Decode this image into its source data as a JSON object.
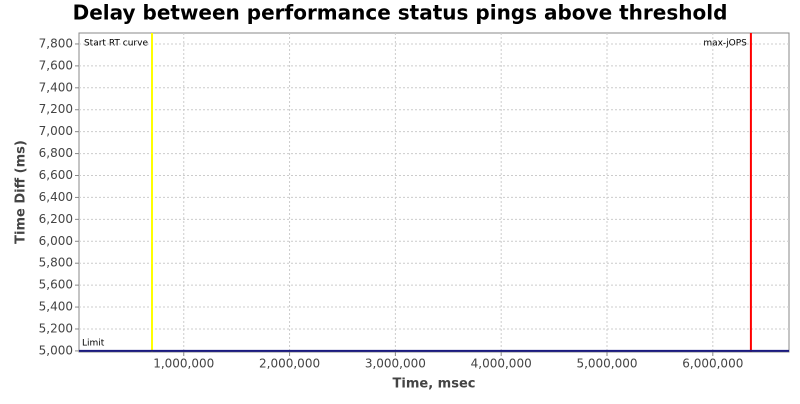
{
  "chart_data": {
    "type": "line",
    "title": "Delay between performance status pings above threshold",
    "xlabel": "Time, msec",
    "ylabel": "Time Diff (ms)",
    "xlim": [
      10000,
      6720000
    ],
    "ylim": [
      4990,
      7900
    ],
    "xticks": [
      {
        "value": 1000000,
        "label": "1,000,000"
      },
      {
        "value": 2000000,
        "label": "2,000,000"
      },
      {
        "value": 3000000,
        "label": "3,000,000"
      },
      {
        "value": 4000000,
        "label": "4,000,000"
      },
      {
        "value": 5000000,
        "label": "5,000,000"
      },
      {
        "value": 6000000,
        "label": "6,000,000"
      }
    ],
    "yticks": [
      {
        "value": 5000,
        "label": "5,000"
      },
      {
        "value": 5200,
        "label": "5,200"
      },
      {
        "value": 5400,
        "label": "5,400"
      },
      {
        "value": 5600,
        "label": "5,600"
      },
      {
        "value": 5800,
        "label": "5,800"
      },
      {
        "value": 6000,
        "label": "6,000"
      },
      {
        "value": 6200,
        "label": "6,200"
      },
      {
        "value": 6400,
        "label": "6,400"
      },
      {
        "value": 6600,
        "label": "6,600"
      },
      {
        "value": 6800,
        "label": "6,800"
      },
      {
        "value": 7000,
        "label": "7,000"
      },
      {
        "value": 7200,
        "label": "7,200"
      },
      {
        "value": 7400,
        "label": "7,400"
      },
      {
        "value": 7600,
        "label": "7,600"
      },
      {
        "value": 7800,
        "label": "7,800"
      }
    ],
    "grid": true,
    "x_markers": [
      {
        "label": "Start RT curve",
        "value": 700000,
        "color": "#ffff00"
      },
      {
        "label": "max-jOPS",
        "value": 6360000,
        "color": "#ff0000"
      }
    ],
    "y_markers": [
      {
        "label": "Limit",
        "value": 5000,
        "color": "#1a1a80"
      }
    ]
  }
}
